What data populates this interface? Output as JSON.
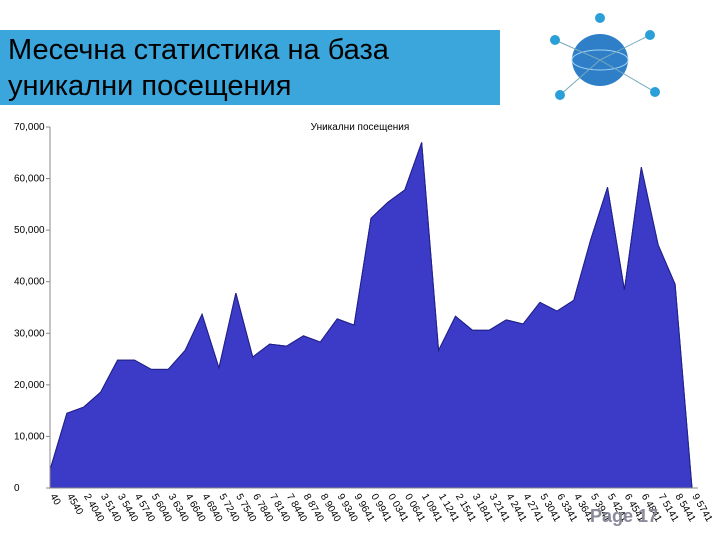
{
  "chart_data": {
    "type": "area",
    "title": "Месечна статистика на база уникални посещения",
    "chart_title": "Уникални посещения",
    "page_label": "Page 17",
    "color": "#3b3bc8",
    "categories": [
      "40",
      "4540",
      "2 4040",
      "3 5140",
      "3 5440",
      "4 5740",
      "5 6040",
      "3 6340",
      "4 6640",
      "4 6940",
      "5 7240",
      "5 7540",
      "6 7840",
      "7 8140",
      "7 8440",
      "8 8740",
      "8 9040",
      "9 9340",
      "9 9641",
      "0 9941",
      "0 0341",
      "0 0641",
      "1 0941",
      "1 1241",
      "2 1541",
      "3 1841",
      "3 2141",
      "4 2441",
      "4 2741",
      "5 3041",
      "6 3341",
      "4 3641",
      "5 3941",
      "5 4241",
      "6 4541",
      "6 4841",
      "7 5141",
      "8 5441",
      "9 5741"
    ],
    "values": [
      3500,
      14500,
      15700,
      18600,
      24800,
      24800,
      23000,
      23000,
      26700,
      33700,
      23300,
      37800,
      25400,
      27900,
      27500,
      29500,
      28300,
      32800,
      31600,
      52300,
      55400,
      57800,
      67000,
      26700,
      33300,
      30600,
      30600,
      32600,
      31800,
      36000,
      34300,
      36400,
      48100,
      58300,
      38400,
      62200,
      47100,
      39500,
      0
    ],
    "ylim": [
      0,
      70000
    ],
    "yticks": [
      {
        "value": 0,
        "label": "0"
      },
      {
        "value": 10000,
        "label": "10,000"
      },
      {
        "value": 20000,
        "label": "20,000"
      },
      {
        "value": 30000,
        "label": "30,000"
      },
      {
        "value": 40000,
        "label": "40,000"
      },
      {
        "value": 50000,
        "label": "50,000"
      },
      {
        "value": 60000,
        "label": "60,000"
      },
      {
        "value": 70000,
        "label": "70,000"
      }
    ]
  }
}
